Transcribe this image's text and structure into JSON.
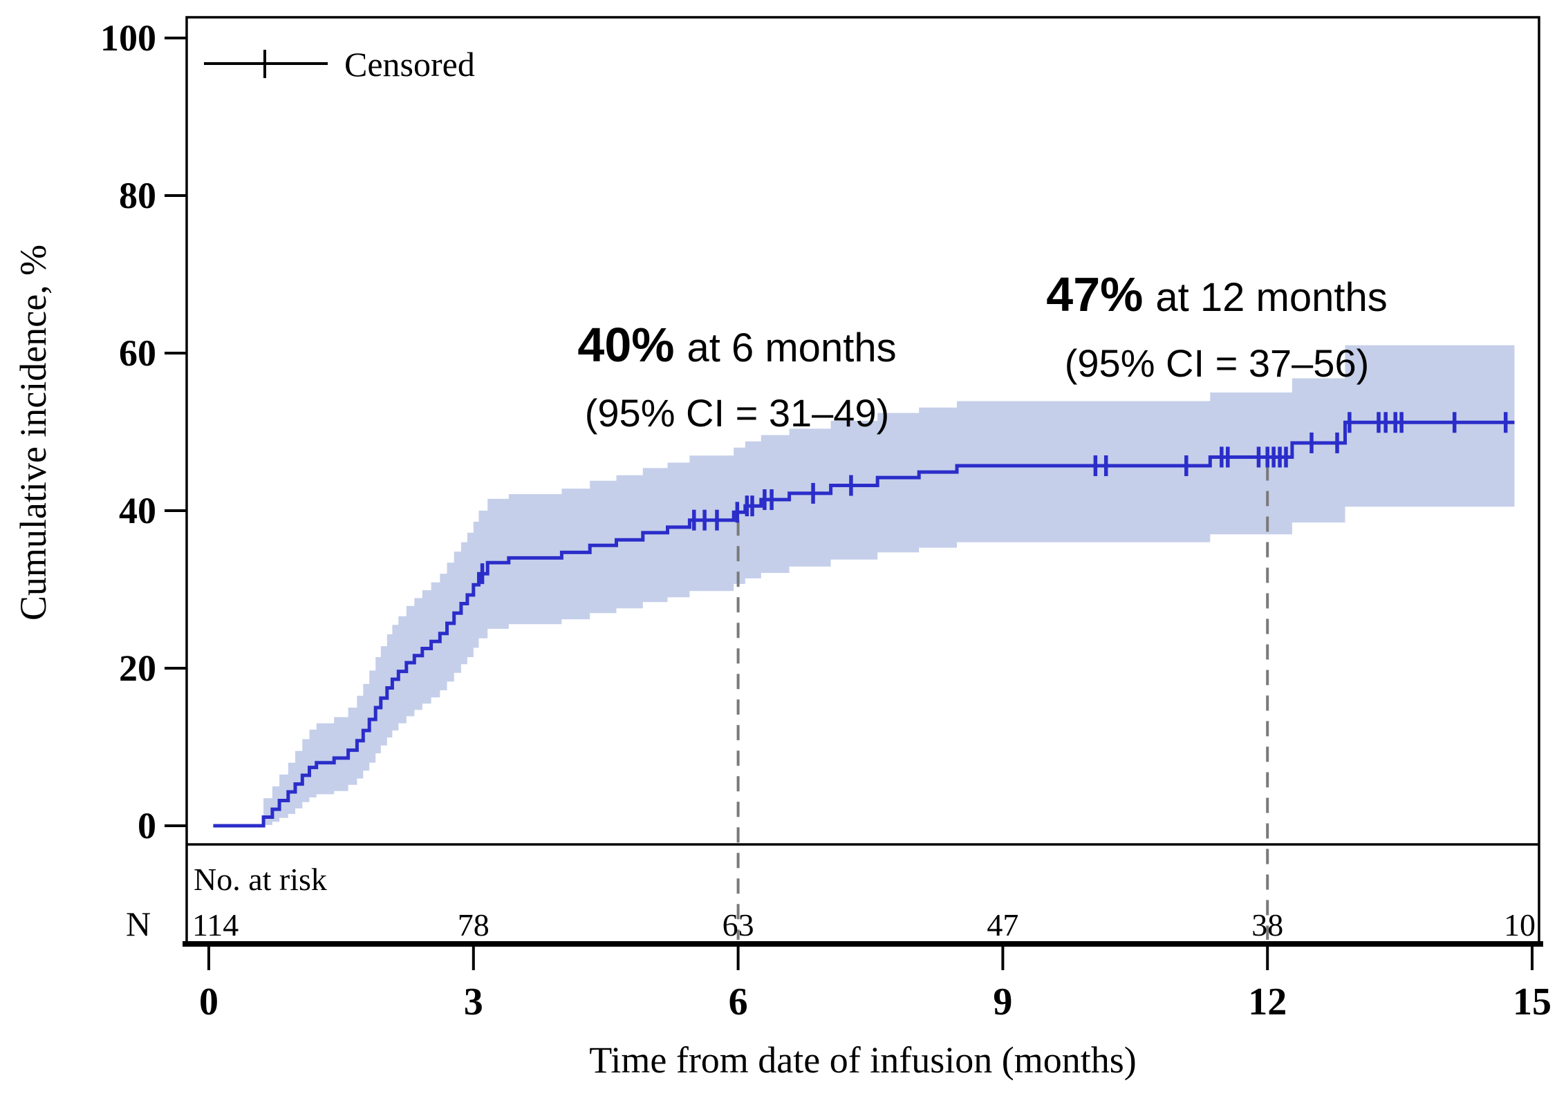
{
  "figure": {
    "background": "#ffffff",
    "axis_color": "#000000",
    "legend": {
      "label": "Censored",
      "marker": "plus-tick-on-line",
      "color": "#000000"
    }
  },
  "chart_data": {
    "type": "line",
    "subtype": "cumulative-incidence-step-curve",
    "title": "",
    "xlabel": "Time from date of infusion (months)",
    "ylabel": "Cumulative incidence, %",
    "xlim": [
      0,
      15
    ],
    "ylim": [
      0,
      100
    ],
    "xticks": [
      0,
      3,
      6,
      9,
      12,
      15
    ],
    "yticks": [
      0,
      20,
      40,
      60,
      80,
      100
    ],
    "grid": false,
    "legend_position": "top-left",
    "reference_line_color": "#7a7a7a",
    "reference_lines": [
      {
        "x": 6
      },
      {
        "x": 12
      }
    ],
    "series": [
      {
        "name": "Cumulative incidence",
        "color": "#2b2dc9",
        "x_start": 0.05,
        "x_end": 14.8,
        "points": [
          [
            0.05,
            0
          ],
          [
            0.62,
            1.1
          ],
          [
            0.72,
            2.1
          ],
          [
            0.8,
            3.2
          ],
          [
            0.9,
            4.3
          ],
          [
            0.98,
            5.3
          ],
          [
            1.06,
            6.4
          ],
          [
            1.14,
            7.4
          ],
          [
            1.22,
            8.0
          ],
          [
            1.42,
            8.6
          ],
          [
            1.58,
            9.6
          ],
          [
            1.68,
            10.8
          ],
          [
            1.75,
            12.1
          ],
          [
            1.82,
            13.5
          ],
          [
            1.89,
            15.0
          ],
          [
            1.95,
            16.2
          ],
          [
            2.02,
            17.5
          ],
          [
            2.08,
            18.6
          ],
          [
            2.15,
            19.6
          ],
          [
            2.24,
            20.7
          ],
          [
            2.33,
            21.6
          ],
          [
            2.42,
            22.5
          ],
          [
            2.52,
            23.4
          ],
          [
            2.62,
            24.4
          ],
          [
            2.7,
            25.7
          ],
          [
            2.78,
            27.0
          ],
          [
            2.86,
            28.2
          ],
          [
            2.93,
            29.3
          ],
          [
            3.0,
            30.6
          ],
          [
            3.06,
            32.0
          ],
          [
            3.16,
            33.4
          ],
          [
            3.4,
            34.0
          ],
          [
            4.0,
            34.7
          ],
          [
            4.32,
            35.6
          ],
          [
            4.62,
            36.3
          ],
          [
            4.92,
            37.2
          ],
          [
            5.2,
            37.9
          ],
          [
            5.45,
            38.8
          ],
          [
            5.95,
            39.8
          ],
          [
            6.08,
            40.6
          ],
          [
            6.26,
            41.4
          ],
          [
            6.58,
            42.2
          ],
          [
            7.05,
            43.2
          ],
          [
            7.58,
            44.2
          ],
          [
            8.05,
            44.9
          ],
          [
            8.48,
            45.7
          ],
          [
            11.35,
            46.8
          ],
          [
            12.28,
            48.6
          ],
          [
            12.88,
            51.2
          ]
        ],
        "censor_marks": [
          [
            3.1,
            32.0
          ],
          [
            5.5,
            38.8
          ],
          [
            5.62,
            38.8
          ],
          [
            5.76,
            38.8
          ],
          [
            5.99,
            39.8
          ],
          [
            6.1,
            40.6
          ],
          [
            6.16,
            40.6
          ],
          [
            6.3,
            41.4
          ],
          [
            6.38,
            41.4
          ],
          [
            6.85,
            42.2
          ],
          [
            7.28,
            43.2
          ],
          [
            10.05,
            45.7
          ],
          [
            10.17,
            45.7
          ],
          [
            11.08,
            45.7
          ],
          [
            11.48,
            46.8
          ],
          [
            11.55,
            46.8
          ],
          [
            11.9,
            46.8
          ],
          [
            12.0,
            46.8
          ],
          [
            12.07,
            46.8
          ],
          [
            12.14,
            46.8
          ],
          [
            12.21,
            46.8
          ],
          [
            12.5,
            48.6
          ],
          [
            12.79,
            48.6
          ],
          [
            12.93,
            51.2
          ],
          [
            13.26,
            51.2
          ],
          [
            13.34,
            51.2
          ],
          [
            13.45,
            51.2
          ],
          [
            13.52,
            51.2
          ],
          [
            14.12,
            51.2
          ],
          [
            14.7,
            51.2
          ]
        ],
        "ci_band": {
          "color": "#c5cfea",
          "points": [
            [
              0.62,
              0.1,
              3.5
            ],
            [
              0.72,
              0.5,
              5.0
            ],
            [
              0.8,
              1.0,
              6.5
            ],
            [
              0.9,
              1.5,
              8.0
            ],
            [
              0.98,
              2.2,
              9.5
            ],
            [
              1.06,
              3.0,
              11.0
            ],
            [
              1.14,
              3.6,
              12.2
            ],
            [
              1.22,
              4.0,
              13.0
            ],
            [
              1.42,
              4.4,
              13.8
            ],
            [
              1.58,
              5.2,
              15.0
            ],
            [
              1.68,
              6.0,
              16.5
            ],
            [
              1.75,
              7.0,
              18.0
            ],
            [
              1.82,
              8.0,
              19.7
            ],
            [
              1.89,
              9.2,
              21.4
            ],
            [
              1.95,
              10.2,
              22.8
            ],
            [
              2.02,
              11.2,
              24.3
            ],
            [
              2.08,
              12.1,
              25.5
            ],
            [
              2.15,
              13.0,
              26.6
            ],
            [
              2.24,
              13.9,
              27.9
            ],
            [
              2.33,
              14.7,
              28.9
            ],
            [
              2.42,
              15.5,
              29.9
            ],
            [
              2.52,
              16.3,
              30.9
            ],
            [
              2.62,
              17.2,
              32.0
            ],
            [
              2.7,
              18.3,
              33.4
            ],
            [
              2.78,
              19.4,
              34.8
            ],
            [
              2.86,
              20.5,
              36.0
            ],
            [
              2.93,
              21.4,
              37.2
            ],
            [
              3.0,
              22.6,
              38.6
            ],
            [
              3.06,
              23.8,
              40.0
            ],
            [
              3.16,
              25.0,
              41.5
            ],
            [
              3.4,
              25.6,
              42.1
            ],
            [
              4.0,
              26.2,
              42.8
            ],
            [
              4.32,
              27.0,
              43.8
            ],
            [
              4.62,
              27.6,
              44.5
            ],
            [
              4.92,
              28.4,
              45.4
            ],
            [
              5.2,
              29.0,
              46.1
            ],
            [
              5.45,
              29.8,
              47.0
            ],
            [
              5.95,
              30.7,
              48.0
            ],
            [
              6.08,
              31.4,
              48.8
            ],
            [
              6.26,
              32.1,
              49.6
            ],
            [
              6.58,
              32.9,
              50.4
            ],
            [
              7.05,
              33.8,
              51.4
            ],
            [
              7.58,
              34.7,
              52.4
            ],
            [
              8.05,
              35.3,
              53.1
            ],
            [
              8.48,
              36.0,
              53.9
            ],
            [
              11.35,
              37.0,
              55.0
            ],
            [
              12.28,
              38.5,
              56.8
            ],
            [
              12.88,
              40.5,
              61.0
            ]
          ]
        }
      }
    ],
    "annotations": [
      {
        "value_label": "40%",
        "suffix": "at 6 months",
        "ci_label": "(95% CI = 31–49)",
        "month": 6,
        "estimate_pct": 40,
        "ci": [
          31,
          49
        ]
      },
      {
        "value_label": "47%",
        "suffix": "at 12 months",
        "ci_label": "(95% CI = 37–56)",
        "month": 12,
        "estimate_pct": 47,
        "ci": [
          37,
          56
        ]
      }
    ],
    "risk_table": {
      "title": "No. at risk",
      "row_label": "N",
      "times": [
        0,
        3,
        6,
        9,
        12,
        15
      ],
      "values": [
        "114",
        "78",
        "63",
        "47",
        "38",
        "10"
      ]
    }
  }
}
